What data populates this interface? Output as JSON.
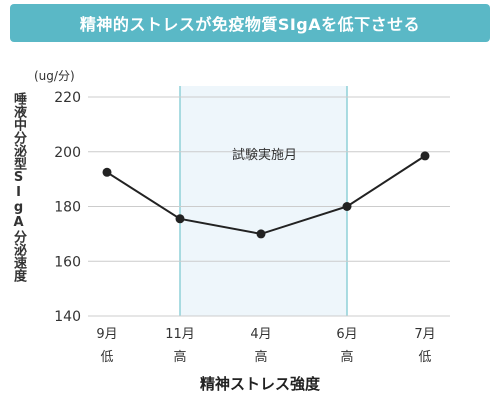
{
  "page_title": "精神的ストレスが免疫物質SIgAを低下させる",
  "colors": {
    "banner": "#5ab8c6",
    "shade_fill": "#eef6fb",
    "shade_edge": "#8fd0d8",
    "line": "#222222",
    "grid": "#cccccc"
  },
  "chart_data": {
    "type": "line",
    "title": "",
    "ylabel": "唾液中分泌型SIgA分泌速度",
    "yunit": "(ug/分)",
    "xlabel": "精神ストレス強度",
    "ylim": [
      140,
      220
    ],
    "yticks": [
      140,
      160,
      180,
      200,
      220
    ],
    "categories": [
      "9月",
      "11月",
      "4月",
      "6月",
      "7月"
    ],
    "stress_levels": [
      "低",
      "高",
      "高",
      "高",
      "低"
    ],
    "series": [
      {
        "values": [
          192.5,
          175.5,
          170,
          180,
          198.5
        ]
      }
    ],
    "annotation": {
      "label": "試験実施月",
      "from_category": "11月",
      "to_category": "6月"
    },
    "grid": true
  }
}
